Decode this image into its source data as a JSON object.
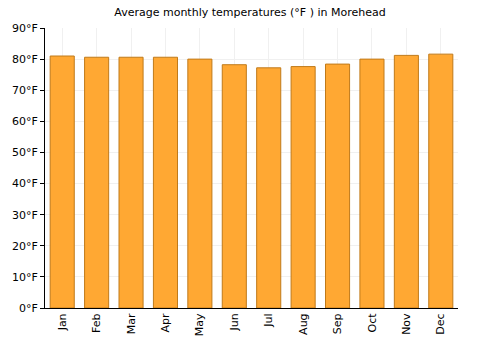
{
  "chart_data": {
    "type": "bar",
    "title": "Average monthly temperatures (°F ) in Morehead",
    "categories": [
      "Jan",
      "Feb",
      "Mar",
      "Apr",
      "May",
      "Jun",
      "Jul",
      "Aug",
      "Sep",
      "Oct",
      "Nov",
      "Dec"
    ],
    "values": [
      81,
      80.6,
      80.6,
      80.6,
      80,
      78.2,
      77.2,
      77.6,
      78.4,
      80,
      81.2,
      81.6
    ],
    "color": "#ffa833",
    "ylim": [
      0,
      90
    ],
    "yticks": [
      {
        "value": 0,
        "label": "0°F"
      },
      {
        "value": 10,
        "label": "10°F"
      },
      {
        "value": 20,
        "label": "20°F"
      },
      {
        "value": 30,
        "label": "30°F"
      },
      {
        "value": 40,
        "label": "40°F"
      },
      {
        "value": 50,
        "label": "50°F"
      },
      {
        "value": 60,
        "label": "60°F"
      },
      {
        "value": 70,
        "label": "70°F"
      },
      {
        "value": 80,
        "label": "80°F"
      },
      {
        "value": 90,
        "label": "90°F"
      }
    ],
    "grid": true
  }
}
